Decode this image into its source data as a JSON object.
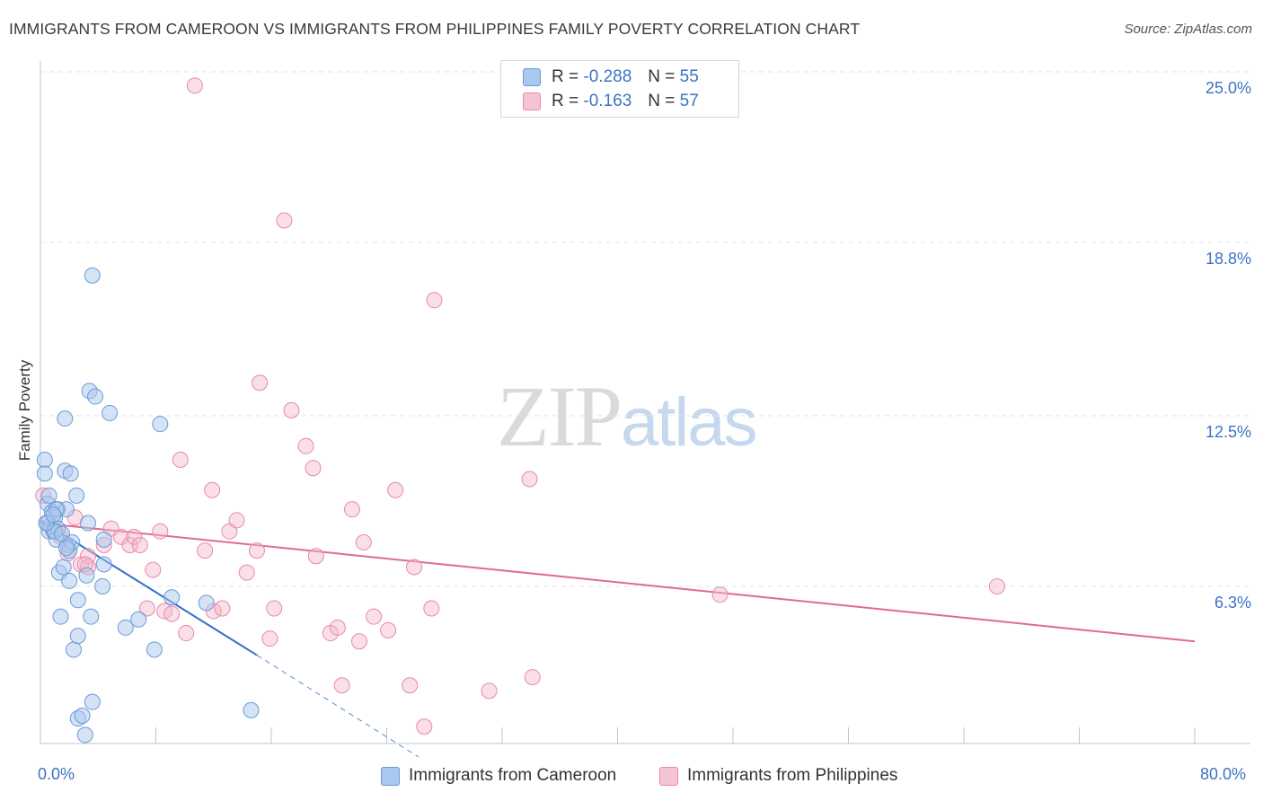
{
  "title": "IMMIGRANTS FROM CAMEROON VS IMMIGRANTS FROM PHILIPPINES FAMILY POVERTY CORRELATION CHART",
  "source": "Source: ZipAtlas.com",
  "watermark": {
    "zip": "ZIP",
    "atlas": "atlas"
  },
  "legend": {
    "rows": [
      {
        "r_label": "R =",
        "r_value": "-0.288",
        "n_label": "N =",
        "n_value": "55"
      },
      {
        "r_label": "R =",
        "r_value": "-0.163",
        "n_label": "N =",
        "n_value": "57"
      }
    ]
  },
  "bottom_legend": [
    "Immigrants from Cameroon",
    "Immigrants from Philippines"
  ],
  "colors": {
    "blue_fill": "#a9c8ee",
    "blue_stroke": "#6b9ad6",
    "blue_line": "#2f6fcc",
    "pink_fill": "#f5b8cb",
    "pink_stroke": "#e88aa8",
    "pink_line": "#e06a95",
    "axis_text": "#3b73c4",
    "grid": "#dde3ea"
  },
  "chart_data": {
    "type": "scatter",
    "title": "IMMIGRANTS FROM CAMEROON VS IMMIGRANTS FROM PHILIPPINES FAMILY POVERTY CORRELATION CHART",
    "xlabel": "",
    "ylabel": "Family Poverty",
    "xlim": [
      0,
      80
    ],
    "ylim": [
      0,
      25.5
    ],
    "x_tick_labels": [
      "0.0%",
      "80.0%"
    ],
    "y_ticks": [
      6.3,
      12.5,
      18.8,
      25.0
    ],
    "y_tick_labels": [
      "6.3%",
      "12.5%",
      "18.8%",
      "25.0%"
    ],
    "series": [
      {
        "name": "Immigrants from Cameroon",
        "r": -0.288,
        "n": 55,
        "points": [
          [
            0.3,
            10.9
          ],
          [
            0.3,
            10.4
          ],
          [
            0.5,
            9.3
          ],
          [
            0.5,
            8.6
          ],
          [
            0.6,
            8.3
          ],
          [
            0.7,
            8.5
          ],
          [
            0.8,
            9.0
          ],
          [
            0.9,
            8.3
          ],
          [
            1.0,
            8.8
          ],
          [
            1.1,
            8.0
          ],
          [
            1.2,
            8.4
          ],
          [
            1.2,
            9.1
          ],
          [
            1.3,
            6.8
          ],
          [
            1.4,
            5.2
          ],
          [
            1.6,
            7.0
          ],
          [
            1.7,
            12.4
          ],
          [
            1.7,
            10.5
          ],
          [
            1.8,
            9.1
          ],
          [
            1.9,
            7.8
          ],
          [
            2.0,
            6.5
          ],
          [
            2.0,
            7.6
          ],
          [
            2.1,
            10.4
          ],
          [
            2.3,
            4.0
          ],
          [
            2.5,
            9.6
          ],
          [
            2.6,
            4.5
          ],
          [
            2.6,
            5.8
          ],
          [
            2.6,
            1.5
          ],
          [
            2.9,
            1.6
          ],
          [
            3.1,
            0.9
          ],
          [
            3.2,
            6.7
          ],
          [
            3.3,
            8.6
          ],
          [
            3.4,
            13.4
          ],
          [
            3.5,
            5.2
          ],
          [
            3.6,
            2.1
          ],
          [
            3.6,
            17.6
          ],
          [
            3.8,
            13.2
          ],
          [
            4.3,
            6.3
          ],
          [
            4.4,
            7.1
          ],
          [
            4.4,
            8.0
          ],
          [
            4.8,
            12.6
          ],
          [
            5.9,
            4.8
          ],
          [
            6.8,
            5.1
          ],
          [
            7.9,
            4.0
          ],
          [
            8.3,
            12.2
          ],
          [
            9.1,
            5.9
          ],
          [
            11.5,
            5.7
          ],
          [
            14.6,
            1.8
          ],
          [
            1.0,
            8.3
          ],
          [
            0.4,
            8.6
          ],
          [
            1.5,
            8.2
          ],
          [
            2.2,
            7.9
          ],
          [
            0.6,
            9.6
          ],
          [
            1.1,
            9.1
          ],
          [
            0.9,
            8.9
          ],
          [
            1.8,
            7.7
          ]
        ],
        "trend": {
          "x0": 0.0,
          "y0": 8.7,
          "x1": 15.0,
          "y1": 3.8,
          "dash_x1": 26.2,
          "dash_y1": 0.1
        }
      },
      {
        "name": "Immigrants from Philippines",
        "r": -0.163,
        "n": 57,
        "points": [
          [
            0.2,
            9.6
          ],
          [
            1.4,
            8.1
          ],
          [
            1.9,
            7.5
          ],
          [
            2.4,
            8.8
          ],
          [
            2.8,
            7.1
          ],
          [
            3.3,
            7.4
          ],
          [
            3.3,
            7.0
          ],
          [
            4.4,
            7.8
          ],
          [
            4.9,
            8.4
          ],
          [
            5.6,
            8.1
          ],
          [
            6.2,
            7.8
          ],
          [
            6.5,
            8.1
          ],
          [
            6.9,
            7.8
          ],
          [
            7.4,
            5.5
          ],
          [
            7.8,
            6.9
          ],
          [
            8.3,
            8.3
          ],
          [
            8.6,
            5.4
          ],
          [
            9.1,
            5.3
          ],
          [
            9.7,
            10.9
          ],
          [
            10.1,
            4.6
          ],
          [
            10.7,
            24.5
          ],
          [
            11.4,
            7.6
          ],
          [
            11.9,
            9.8
          ],
          [
            12.0,
            5.4
          ],
          [
            12.6,
            5.5
          ],
          [
            13.1,
            8.3
          ],
          [
            13.6,
            8.7
          ],
          [
            14.3,
            6.8
          ],
          [
            15.0,
            7.6
          ],
          [
            15.2,
            13.7
          ],
          [
            15.9,
            4.4
          ],
          [
            16.2,
            5.5
          ],
          [
            16.9,
            19.6
          ],
          [
            17.4,
            12.7
          ],
          [
            18.4,
            11.4
          ],
          [
            18.9,
            10.6
          ],
          [
            19.1,
            7.4
          ],
          [
            20.1,
            4.6
          ],
          [
            20.6,
            4.8
          ],
          [
            20.9,
            2.7
          ],
          [
            21.6,
            9.1
          ],
          [
            22.1,
            4.3
          ],
          [
            22.4,
            7.9
          ],
          [
            23.1,
            5.2
          ],
          [
            24.1,
            4.7
          ],
          [
            24.6,
            9.8
          ],
          [
            25.6,
            2.7
          ],
          [
            25.9,
            7.0
          ],
          [
            26.6,
            1.2
          ],
          [
            27.1,
            5.5
          ],
          [
            27.3,
            16.7
          ],
          [
            31.1,
            2.5
          ],
          [
            33.9,
            10.2
          ],
          [
            34.1,
            3.0
          ],
          [
            47.1,
            6.0
          ],
          [
            66.3,
            6.3
          ],
          [
            3.1,
            7.1
          ]
        ],
        "trend": {
          "x0": 0.0,
          "y0": 8.6,
          "x1": 80.0,
          "y1": 4.3
        }
      }
    ]
  }
}
